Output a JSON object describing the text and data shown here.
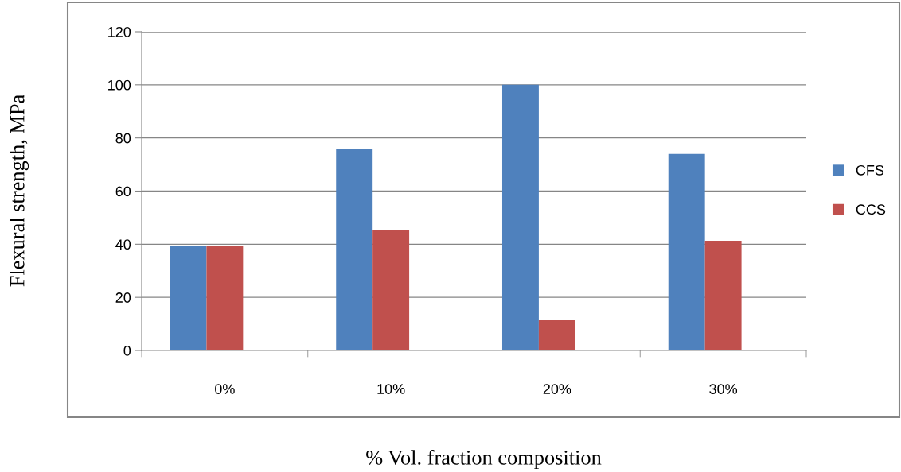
{
  "chart_data": {
    "type": "bar",
    "xlabel": "% Vol. fraction composition",
    "ylabel": "Flexural strength, MPa",
    "categories": [
      "0%",
      "10%",
      "20%",
      "30%"
    ],
    "series": [
      {
        "name": "CFS",
        "color": "#4f81bd",
        "values": [
          39.5,
          75.7,
          100,
          74
        ]
      },
      {
        "name": "CCS",
        "color": "#c0504d",
        "values": [
          39.5,
          45.2,
          11.4,
          41.3
        ]
      }
    ],
    "ylim": [
      0,
      120
    ],
    "yticks": [
      0,
      20,
      40,
      60,
      80,
      100,
      120
    ],
    "grid": "y",
    "legend": "right"
  }
}
